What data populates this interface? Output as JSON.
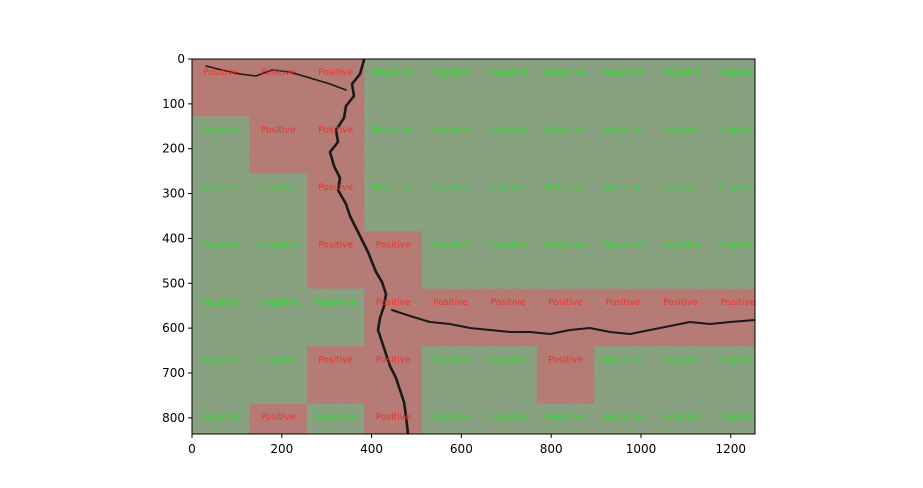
{
  "chart_data": {
    "type": "heatmap",
    "title": "",
    "xlabel": "",
    "ylabel": "",
    "xlim": [
      0,
      1254
    ],
    "ylim": [
      836,
      0
    ],
    "x_ticks": [
      "0",
      "200",
      "400",
      "600",
      "800",
      "1000",
      "1200"
    ],
    "y_ticks": [
      "0",
      "100",
      "200",
      "300",
      "400",
      "500",
      "600",
      "700",
      "800"
    ],
    "x_tick_values": [
      0,
      200,
      400,
      600,
      800,
      1000,
      1200
    ],
    "y_tick_values": [
      0,
      100,
      200,
      300,
      400,
      500,
      600,
      700,
      800
    ],
    "grid": false,
    "background": "photo of cracked concrete surface",
    "cell_size": 128,
    "labels": {
      "positive": "Positive",
      "negative": "Negative"
    },
    "colors": {
      "positive_overlay": "#d9534f",
      "negative_overlay": "#5cb85c",
      "positive_text": "#e8332f",
      "negative_text": "#33d633"
    },
    "grid_cells": [
      [
        1,
        1,
        1,
        0,
        0,
        0,
        0,
        0,
        0,
        0
      ],
      [
        0,
        1,
        1,
        0,
        0,
        0,
        0,
        0,
        0,
        0
      ],
      [
        0,
        0,
        1,
        0,
        0,
        0,
        0,
        0,
        0,
        0
      ],
      [
        0,
        0,
        1,
        1,
        0,
        0,
        0,
        0,
        0,
        0
      ],
      [
        0,
        0,
        0,
        1,
        1,
        1,
        1,
        1,
        1,
        1
      ],
      [
        0,
        0,
        1,
        1,
        0,
        0,
        1,
        0,
        0,
        0
      ],
      [
        0,
        1,
        0,
        1,
        0,
        0,
        0,
        0,
        0,
        0
      ]
    ]
  }
}
